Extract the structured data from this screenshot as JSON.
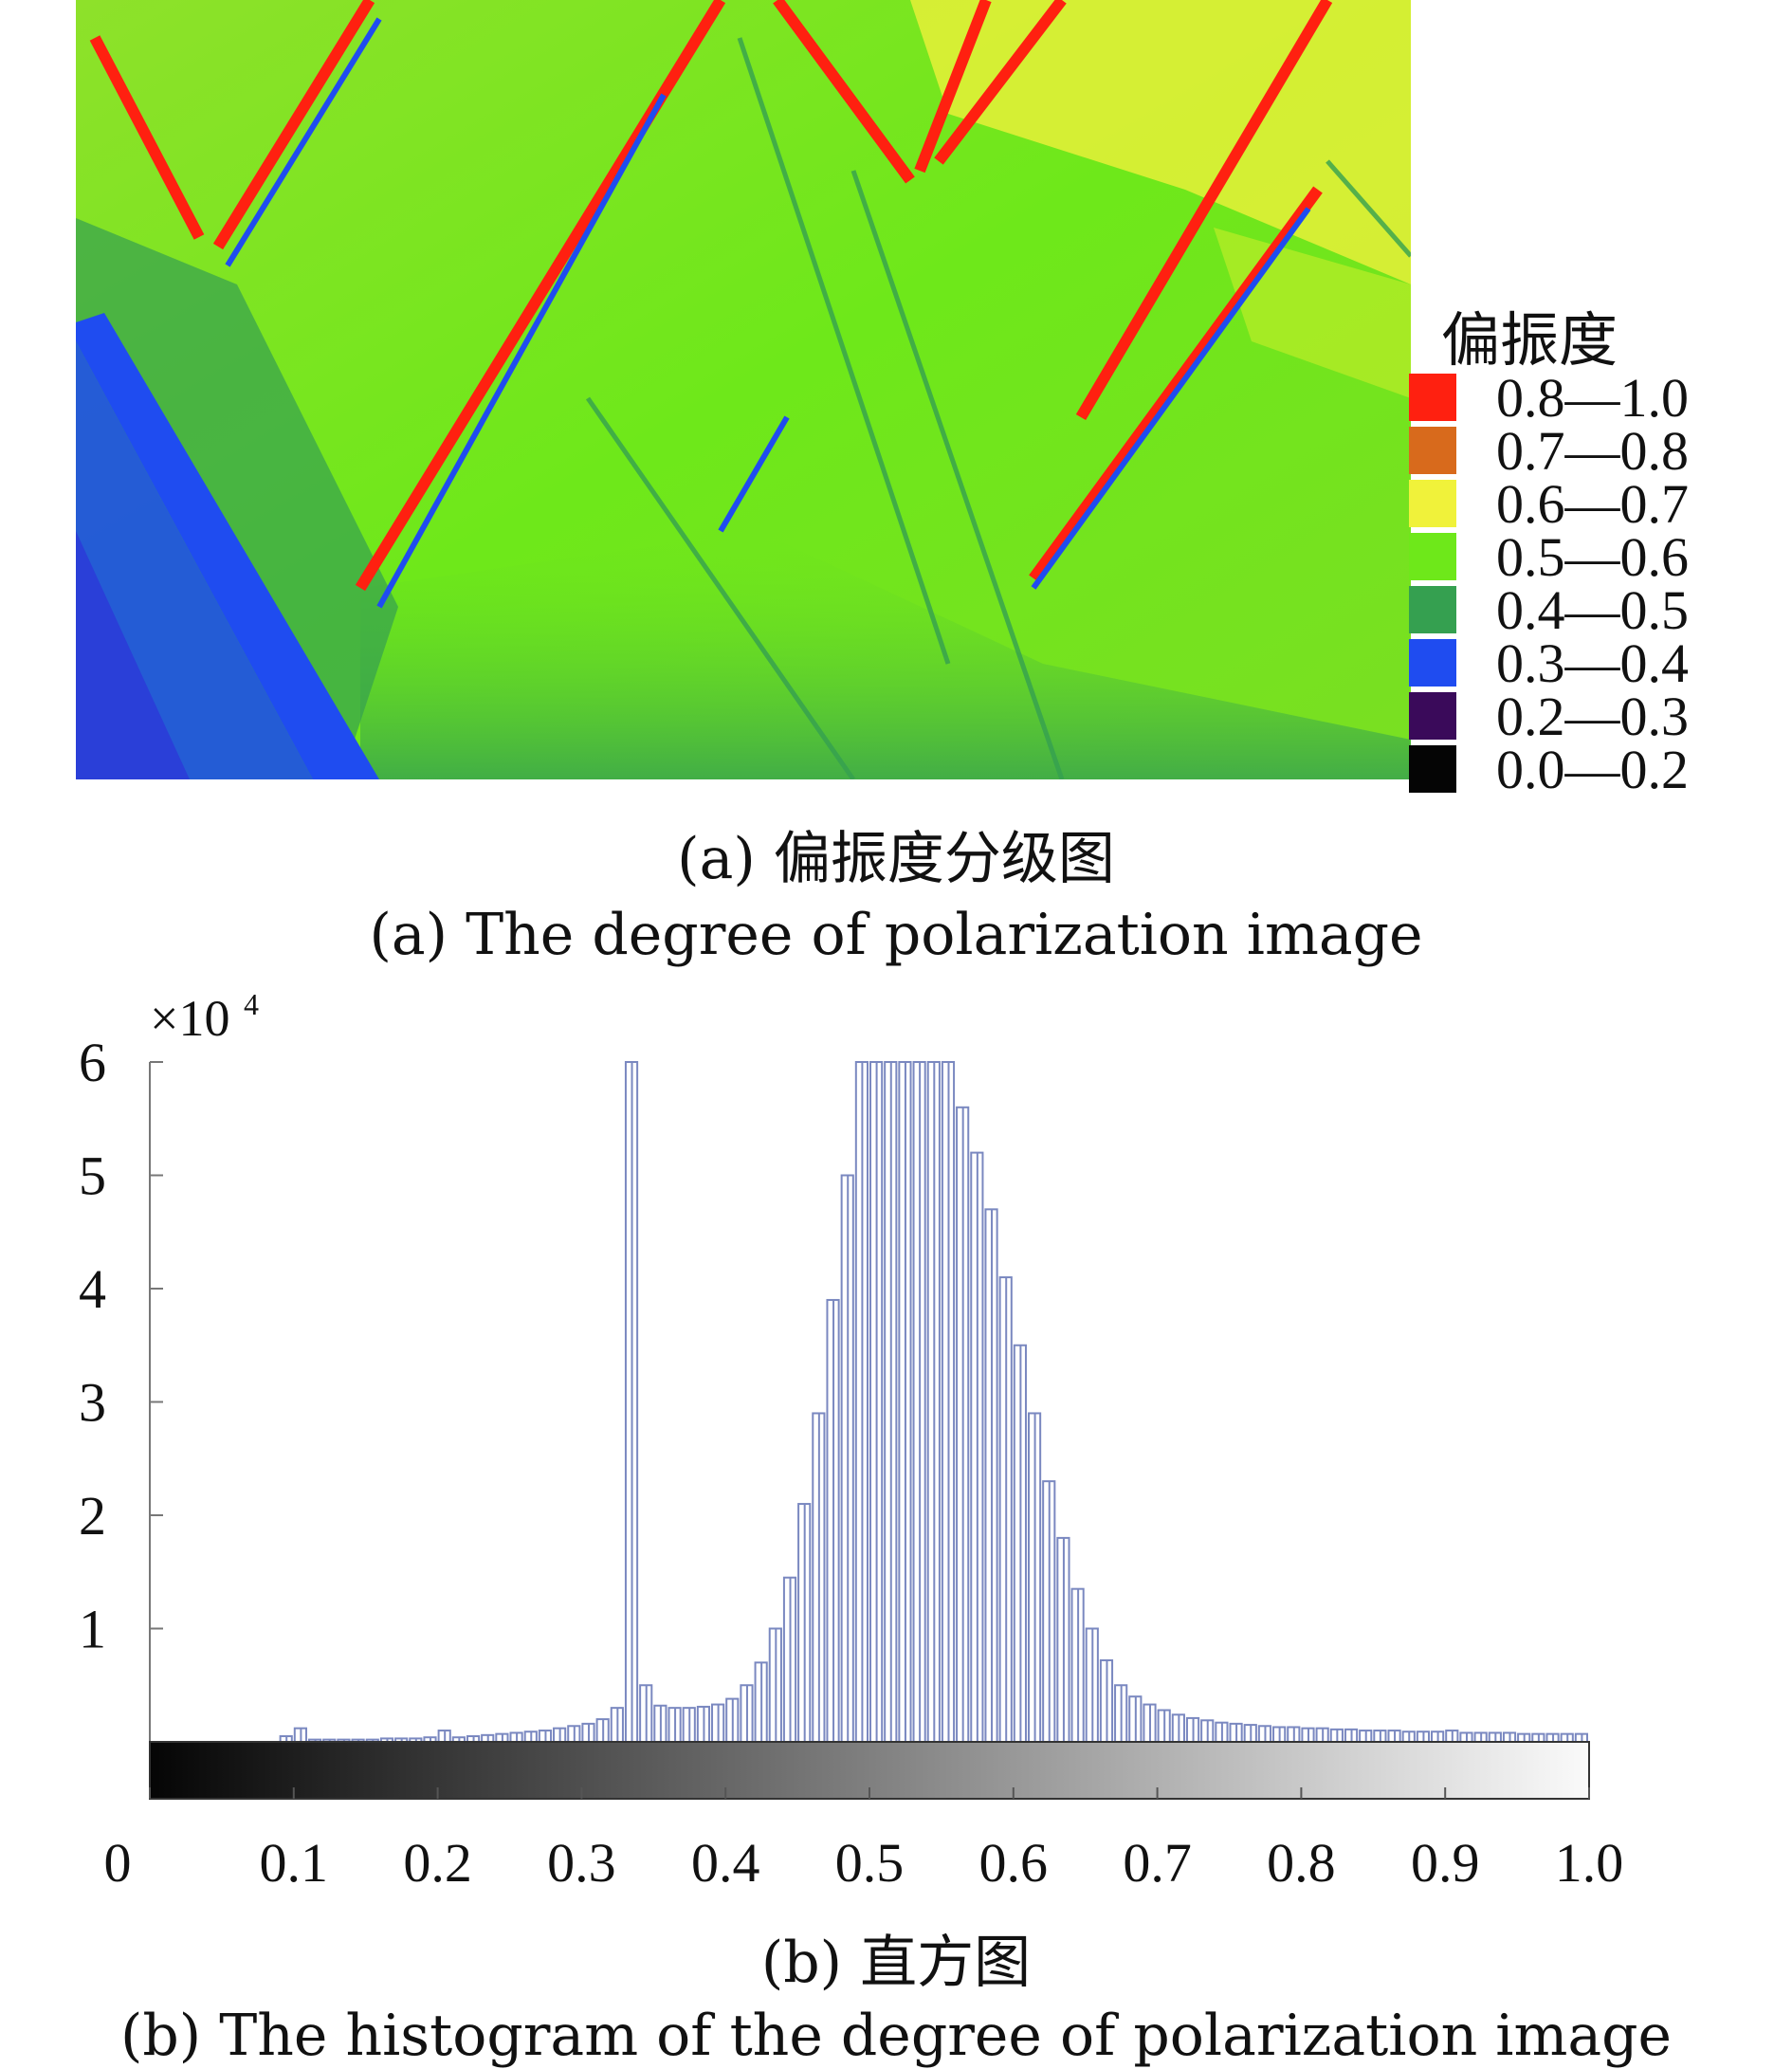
{
  "panel_a": {
    "caption_cn": "(a) 偏振度分级图",
    "caption_en": "(a) The degree of polarization image",
    "legend": {
      "title": "偏振度",
      "items": [
        {
          "label": "0.8—1.0",
          "color": "#ff2010"
        },
        {
          "label": "0.7—0.8",
          "color": "#d86a1c"
        },
        {
          "label": "0.6—0.7",
          "color": "#f0f23a"
        },
        {
          "label": "0.5—0.6",
          "color": "#6ee81a"
        },
        {
          "label": "0.4—0.5",
          "color": "#35a050"
        },
        {
          "label": "0.3—0.4",
          "color": "#1f4cf0"
        },
        {
          "label": "0.2—0.3",
          "color": "#3a0a5a"
        },
        {
          "label": "0.0—0.2",
          "color": "#050505"
        }
      ]
    }
  },
  "chart_data": {
    "type": "bar",
    "title": "",
    "xlabel": "",
    "ylabel": "",
    "y_multiplier_label": "×10",
    "y_multiplier_exponent": "4",
    "xlim": [
      0,
      1.0
    ],
    "ylim": [
      0,
      6
    ],
    "x_ticks": [
      "0",
      "0.1",
      "0.2",
      "0.3",
      "0.4",
      "0.5",
      "0.6",
      "0.7",
      "0.8",
      "0.9",
      "1.0"
    ],
    "y_ticks": [
      "1",
      "2",
      "3",
      "4",
      "5",
      "6"
    ],
    "grid": false,
    "bar_color": "#7a88c0",
    "colorbar": {
      "from": "#050505",
      "to": "#fafafa"
    },
    "x": [
      0.005,
      0.015,
      0.025,
      0.035,
      0.045,
      0.055,
      0.065,
      0.075,
      0.085,
      0.095,
      0.105,
      0.115,
      0.125,
      0.135,
      0.145,
      0.155,
      0.165,
      0.175,
      0.185,
      0.195,
      0.205,
      0.215,
      0.225,
      0.235,
      0.245,
      0.255,
      0.265,
      0.275,
      0.285,
      0.295,
      0.305,
      0.315,
      0.325,
      0.335,
      0.345,
      0.355,
      0.365,
      0.375,
      0.385,
      0.395,
      0.405,
      0.415,
      0.425,
      0.435,
      0.445,
      0.455,
      0.465,
      0.475,
      0.485,
      0.495,
      0.505,
      0.515,
      0.525,
      0.535,
      0.545,
      0.555,
      0.565,
      0.575,
      0.585,
      0.595,
      0.605,
      0.615,
      0.625,
      0.635,
      0.645,
      0.655,
      0.665,
      0.675,
      0.685,
      0.695,
      0.705,
      0.715,
      0.725,
      0.735,
      0.745,
      0.755,
      0.765,
      0.775,
      0.785,
      0.795,
      0.805,
      0.815,
      0.825,
      0.835,
      0.845,
      0.855,
      0.865,
      0.875,
      0.885,
      0.895,
      0.905,
      0.915,
      0.925,
      0.935,
      0.945,
      0.955,
      0.965,
      0.975,
      0.985,
      0.995
    ],
    "values": [
      0,
      0,
      0,
      0,
      0,
      0,
      0,
      0,
      0,
      0.05,
      0.12,
      0.02,
      0.02,
      0.02,
      0.02,
      0.02,
      0.03,
      0.03,
      0.03,
      0.04,
      0.1,
      0.04,
      0.05,
      0.06,
      0.07,
      0.08,
      0.09,
      0.1,
      0.12,
      0.14,
      0.16,
      0.2,
      0.3,
      6.0,
      0.5,
      0.32,
      0.3,
      0.3,
      0.31,
      0.33,
      0.38,
      0.5,
      0.7,
      1.0,
      1.45,
      2.1,
      2.9,
      3.9,
      5.0,
      6.0,
      6.0,
      6.0,
      6.0,
      6.0,
      6.0,
      6.0,
      5.6,
      5.2,
      4.7,
      4.1,
      3.5,
      2.9,
      2.3,
      1.8,
      1.35,
      1.0,
      0.72,
      0.5,
      0.4,
      0.33,
      0.28,
      0.24,
      0.21,
      0.19,
      0.17,
      0.16,
      0.15,
      0.14,
      0.13,
      0.13,
      0.12,
      0.12,
      0.11,
      0.11,
      0.1,
      0.1,
      0.1,
      0.09,
      0.09,
      0.09,
      0.1,
      0.08,
      0.08,
      0.08,
      0.08,
      0.07,
      0.07,
      0.07,
      0.07,
      0.07
    ]
  },
  "panel_b": {
    "caption_cn": "(b) 直方图",
    "caption_en": "(b) The histogram of the degree of polarization image"
  }
}
